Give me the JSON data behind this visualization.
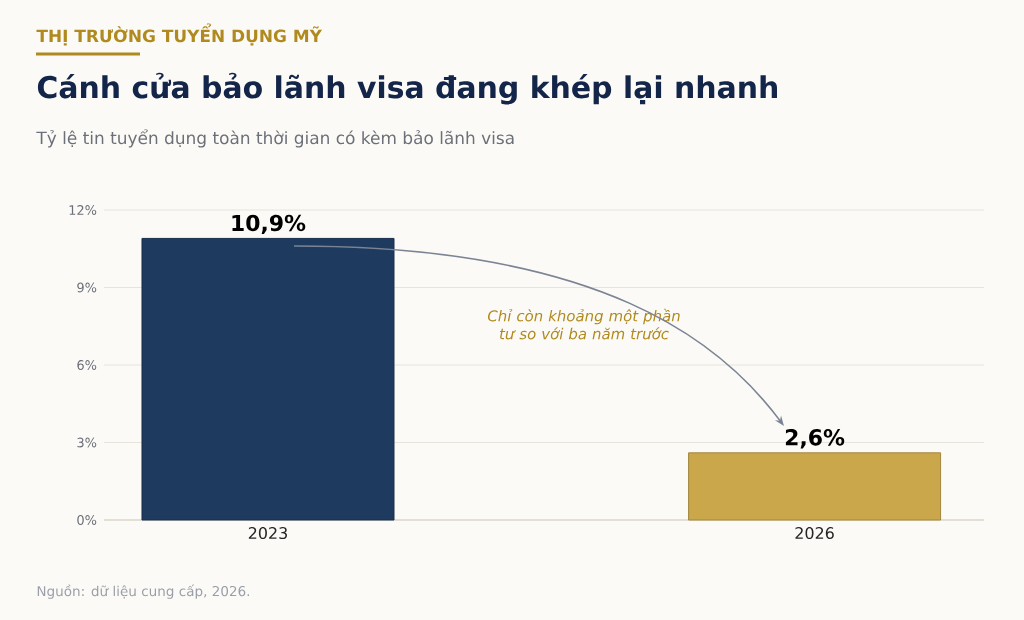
{
  "chart_data": {
    "type": "bar",
    "title": "Cánh cửa bảo lãnh visa đang khép lại nhanh",
    "subtitle": "Tỷ lệ tin tuyển dụng toàn thời gian có kèm bảo lãnh visa",
    "annotations": [
      "THỊ TRƯỜNG TUYỂN DỤNG MỸ",
      "Chỉ còn khoảng một phần tư so với ba năm trước",
      "Nguồn: dữ liệu cung cấp, 2026."
    ],
    "categories": [
      "2023",
      "2026"
    ],
    "values": [
      10.9,
      2.6
    ],
    "colors": [
      "#1e3a5f",
      "#c9a74a"
    ],
    "value_labels": [
      "10,9%",
      "2,6%"
    ],
    "ylim": [
      0,
      12
    ],
    "yticks": [
      {
        "value": 0,
        "label": "0%"
      },
      {
        "value": 3,
        "label": "3%"
      },
      {
        "value": 6,
        "label": "6%"
      },
      {
        "value": 9,
        "label": "9%"
      },
      {
        "value": 12,
        "label": "12%"
      }
    ],
    "grid": "y"
  }
}
